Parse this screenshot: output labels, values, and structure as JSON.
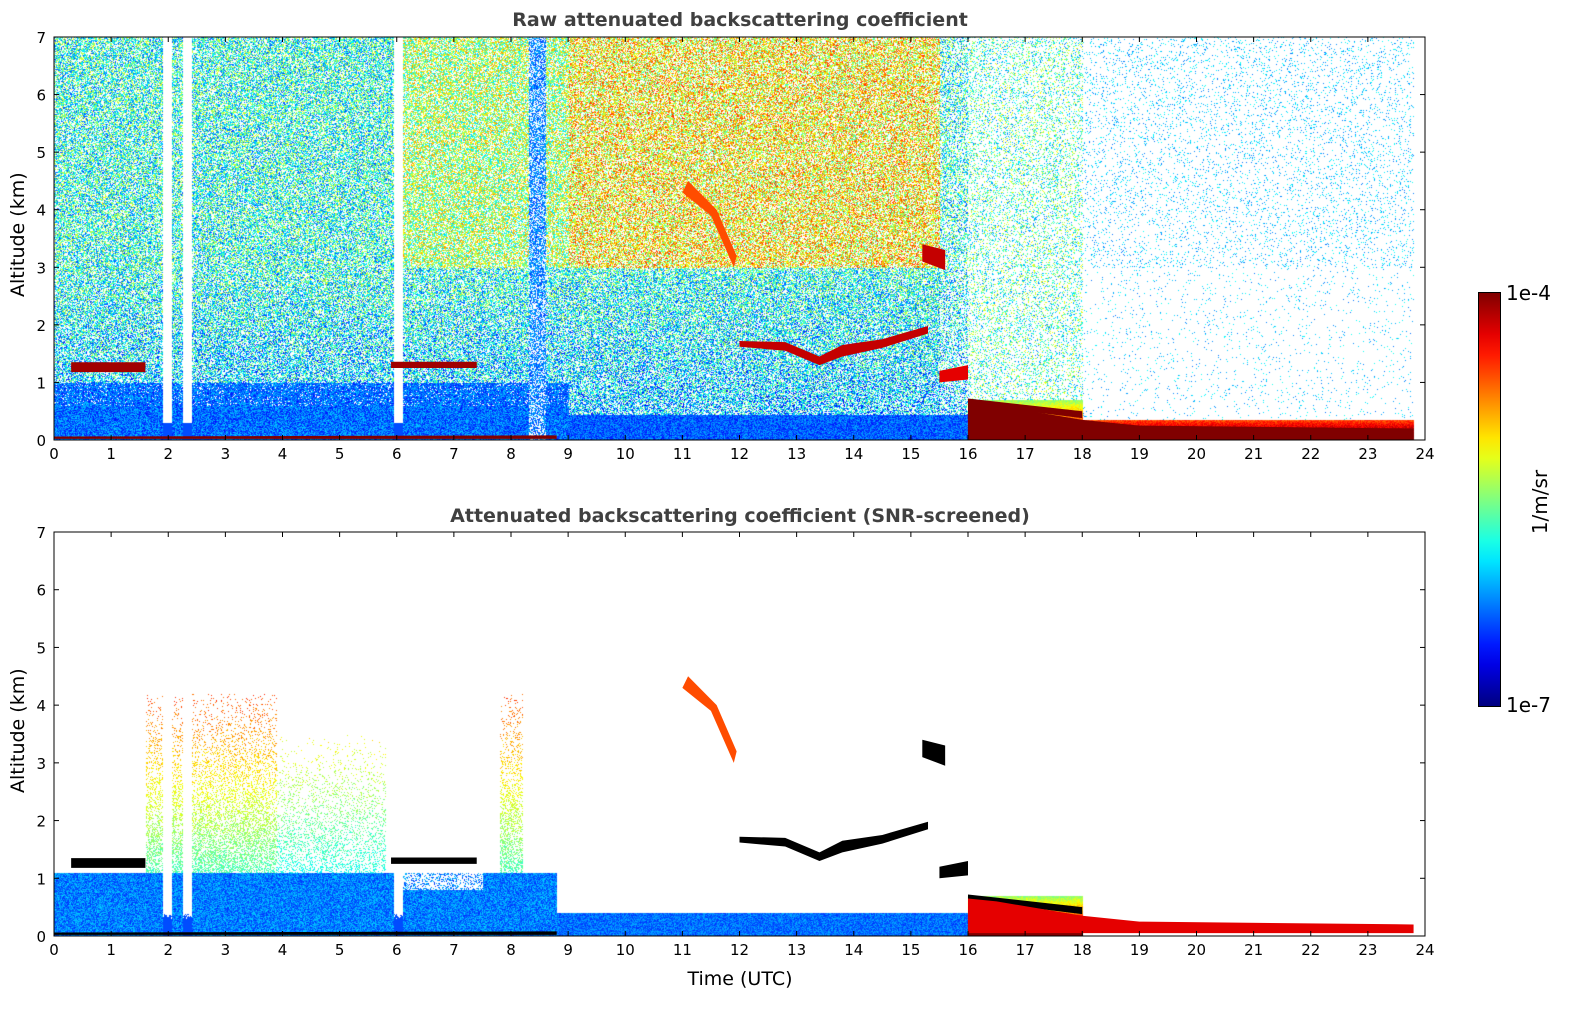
{
  "chart_data": [
    {
      "type": "heatmap",
      "title": "Raw attenuated backscattering coefficient",
      "xlabel": "",
      "ylabel": "Altitude (km)",
      "xlim": [
        0,
        24
      ],
      "ylim": [
        0,
        7
      ],
      "xticks": [
        0,
        1,
        2,
        3,
        4,
        5,
        6,
        7,
        8,
        9,
        10,
        11,
        12,
        13,
        14,
        15,
        16,
        17,
        18,
        19,
        20,
        21,
        22,
        23,
        24
      ],
      "yticks": [
        0,
        1,
        2,
        3,
        4,
        5,
        6,
        7
      ],
      "screened": false,
      "features": [
        {
          "name": "cloud-layer-early",
          "log_beta": -4.1,
          "points": [
            [
              0.3,
              1.18
            ],
            [
              1.6,
              1.18
            ],
            [
              1.6,
              1.35
            ],
            [
              0.3,
              1.35
            ]
          ]
        },
        {
          "name": "cloud-layer-6h",
          "log_beta": -4.1,
          "points": [
            [
              5.9,
              1.25
            ],
            [
              7.4,
              1.25
            ],
            [
              7.4,
              1.36
            ],
            [
              5.9,
              1.36
            ]
          ]
        },
        {
          "name": "cloud-layer-12-15h",
          "log_beta": -4.2,
          "points": [
            [
              12,
              1.62
            ],
            [
              12.8,
              1.55
            ],
            [
              13.4,
              1.3
            ],
            [
              13.8,
              1.45
            ],
            [
              14.5,
              1.6
            ],
            [
              15.3,
              1.85
            ],
            [
              15.3,
              1.98
            ],
            [
              14.5,
              1.75
            ],
            [
              13.8,
              1.65
            ],
            [
              13.4,
              1.45
            ],
            [
              12.8,
              1.7
            ],
            [
              12,
              1.72
            ]
          ]
        },
        {
          "name": "cirrus-fall-streak",
          "log_beta": -4.6,
          "points": [
            [
              11,
              4.3
            ],
            [
              11.5,
              3.9
            ],
            [
              11.9,
              3.0
            ],
            [
              11.95,
              3.2
            ],
            [
              11.6,
              4.0
            ],
            [
              11.1,
              4.5
            ]
          ]
        },
        {
          "name": "cloud-15h-3km",
          "log_beta": -4.2,
          "points": [
            [
              15.2,
              3.1
            ],
            [
              15.6,
              2.95
            ],
            [
              15.6,
              3.3
            ],
            [
              15.2,
              3.4
            ]
          ]
        },
        {
          "name": "cloud-16h",
          "log_beta": -4.3,
          "points": [
            [
              15.5,
              1.0
            ],
            [
              16,
              1.05
            ],
            [
              16,
              1.3
            ],
            [
              15.5,
              1.2
            ]
          ]
        },
        {
          "name": "boundary-layer-top-16-18h",
          "log_beta": -4.0,
          "points": [
            [
              16,
              0.62
            ],
            [
              18,
              0.38
            ],
            [
              18,
              0.5
            ],
            [
              16,
              0.72
            ]
          ]
        },
        {
          "name": "fog-layer-18-24h",
          "log_beta": -4.0,
          "points": [
            [
              16,
              0.05
            ],
            [
              18,
              0.05
            ],
            [
              23.8,
              0.05
            ],
            [
              23.8,
              0.2
            ],
            [
              19,
              0.25
            ],
            [
              18,
              0.35
            ],
            [
              16.5,
              0.6
            ],
            [
              16,
              0.65
            ]
          ]
        },
        {
          "name": "ground-signal",
          "log_beta": -4.0,
          "points": [
            [
              0,
              0.02
            ],
            [
              8.8,
              0.02
            ],
            [
              8.8,
              0.08
            ],
            [
              0,
              0.06
            ]
          ]
        }
      ]
    },
    {
      "type": "heatmap",
      "title": "Attenuated backscattering coefficient (SNR-screened)",
      "xlabel": "Time (UTC)",
      "ylabel": "Altitude (km)",
      "xlim": [
        0,
        24
      ],
      "ylim": [
        0,
        7
      ],
      "xticks": [
        0,
        1,
        2,
        3,
        4,
        5,
        6,
        7,
        8,
        9,
        10,
        11,
        12,
        13,
        14,
        15,
        16,
        17,
        18,
        19,
        20,
        21,
        22,
        23,
        24
      ],
      "yticks": [
        0,
        1,
        2,
        3,
        4,
        5,
        6,
        7
      ],
      "screened": true,
      "features": [
        {
          "name": "cloud-layer-early",
          "log_beta": -3.5,
          "points": [
            [
              0.3,
              1.18
            ],
            [
              1.6,
              1.18
            ],
            [
              1.6,
              1.35
            ],
            [
              0.3,
              1.35
            ]
          ]
        },
        {
          "name": "cloud-layer-6h",
          "log_beta": -3.5,
          "points": [
            [
              5.9,
              1.25
            ],
            [
              7.4,
              1.25
            ],
            [
              7.4,
              1.36
            ],
            [
              5.9,
              1.36
            ]
          ]
        },
        {
          "name": "cloud-layer-12-15h",
          "log_beta": -3.5,
          "points": [
            [
              12,
              1.62
            ],
            [
              12.8,
              1.55
            ],
            [
              13.4,
              1.3
            ],
            [
              13.8,
              1.45
            ],
            [
              14.5,
              1.6
            ],
            [
              15.3,
              1.85
            ],
            [
              15.3,
              1.98
            ],
            [
              14.5,
              1.75
            ],
            [
              13.8,
              1.65
            ],
            [
              13.4,
              1.45
            ],
            [
              12.8,
              1.7
            ],
            [
              12,
              1.72
            ]
          ]
        },
        {
          "name": "cirrus-fall-streak",
          "log_beta": -4.6,
          "points": [
            [
              11,
              4.3
            ],
            [
              11.5,
              3.9
            ],
            [
              11.9,
              3.0
            ],
            [
              11.95,
              3.2
            ],
            [
              11.6,
              4.0
            ],
            [
              11.1,
              4.5
            ]
          ]
        },
        {
          "name": "cloud-15h-3km",
          "log_beta": -3.5,
          "points": [
            [
              15.2,
              3.1
            ],
            [
              15.6,
              2.95
            ],
            [
              15.6,
              3.3
            ],
            [
              15.2,
              3.4
            ]
          ]
        },
        {
          "name": "cloud-16h",
          "log_beta": -3.5,
          "points": [
            [
              15.5,
              1.0
            ],
            [
              16,
              1.05
            ],
            [
              16,
              1.3
            ],
            [
              15.5,
              1.2
            ]
          ]
        },
        {
          "name": "boundary-layer-top-16-18h",
          "log_beta": -3.5,
          "points": [
            [
              16,
              0.62
            ],
            [
              18,
              0.38
            ],
            [
              18,
              0.5
            ],
            [
              16,
              0.72
            ]
          ]
        },
        {
          "name": "fog-layer-18-24h",
          "log_beta": -4.3,
          "points": [
            [
              16,
              0.05
            ],
            [
              18,
              0.05
            ],
            [
              23.8,
              0.05
            ],
            [
              23.8,
              0.2
            ],
            [
              19,
              0.25
            ],
            [
              18,
              0.35
            ],
            [
              16.5,
              0.6
            ],
            [
              16,
              0.65
            ]
          ]
        },
        {
          "name": "ground-signal",
          "log_beta": -3.5,
          "points": [
            [
              0,
              0.02
            ],
            [
              8.8,
              0.02
            ],
            [
              8.8,
              0.08
            ],
            [
              0,
              0.06
            ]
          ]
        }
      ]
    }
  ],
  "colorbar": {
    "label": "1/m/sr",
    "max_label": "1e-4",
    "min_label": "1e-7",
    "range_log10": [
      -7,
      -4
    ],
    "colormap": "jet"
  }
}
